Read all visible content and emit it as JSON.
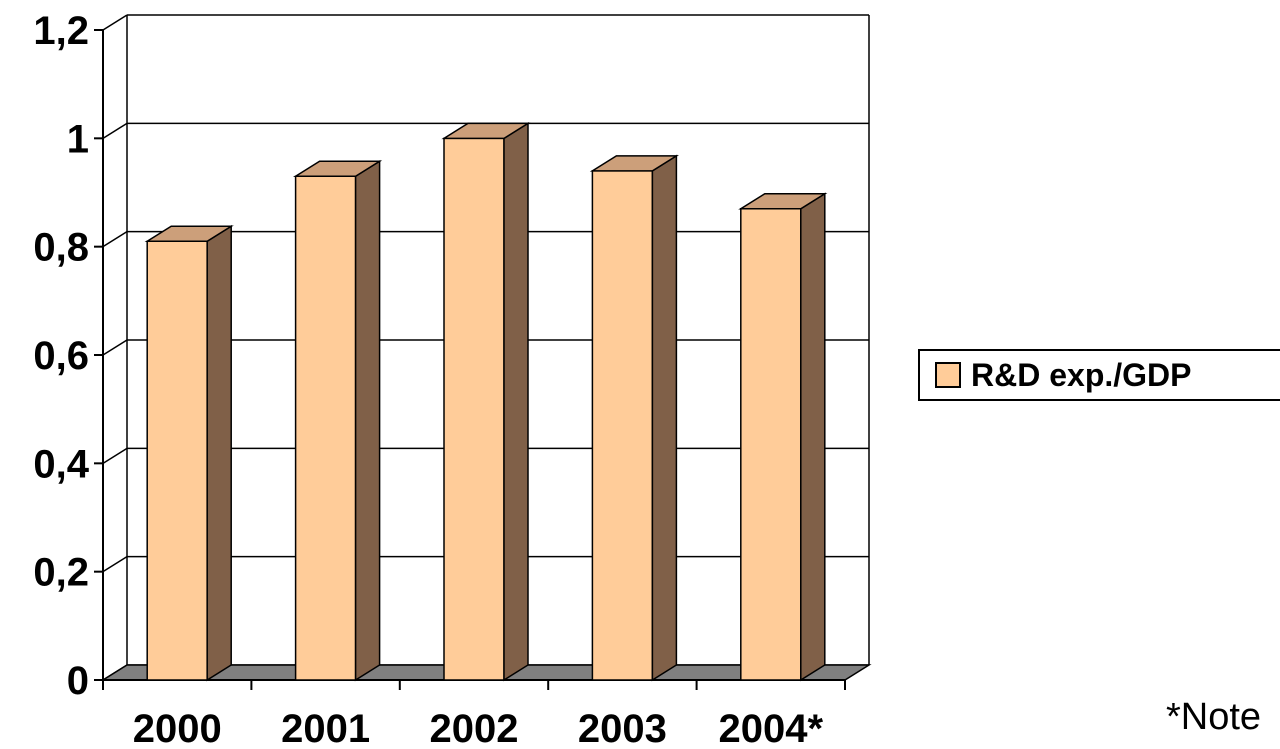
{
  "chart_data": {
    "type": "bar",
    "categories": [
      "2000",
      "2001",
      "2002",
      "2003",
      "2004*"
    ],
    "series": [
      {
        "name": "R&D exp./GDP",
        "values": [
          0.81,
          0.93,
          1.0,
          0.94,
          0.87
        ]
      }
    ],
    "ylim": [
      0,
      1.2
    ],
    "yticks": [
      "0",
      "0,2",
      "0,4",
      "0,6",
      "0,8",
      "1",
      "1,2"
    ],
    "grid": true,
    "legend_position": "right",
    "style": "3d-column",
    "colors": {
      "bar_front": "#FFCC99",
      "bar_side": "#806048",
      "bar_top": "#CC9F7A",
      "floor": "#808080"
    }
  },
  "legend": {
    "label": "R&D exp./GDP"
  },
  "note": "*Note"
}
